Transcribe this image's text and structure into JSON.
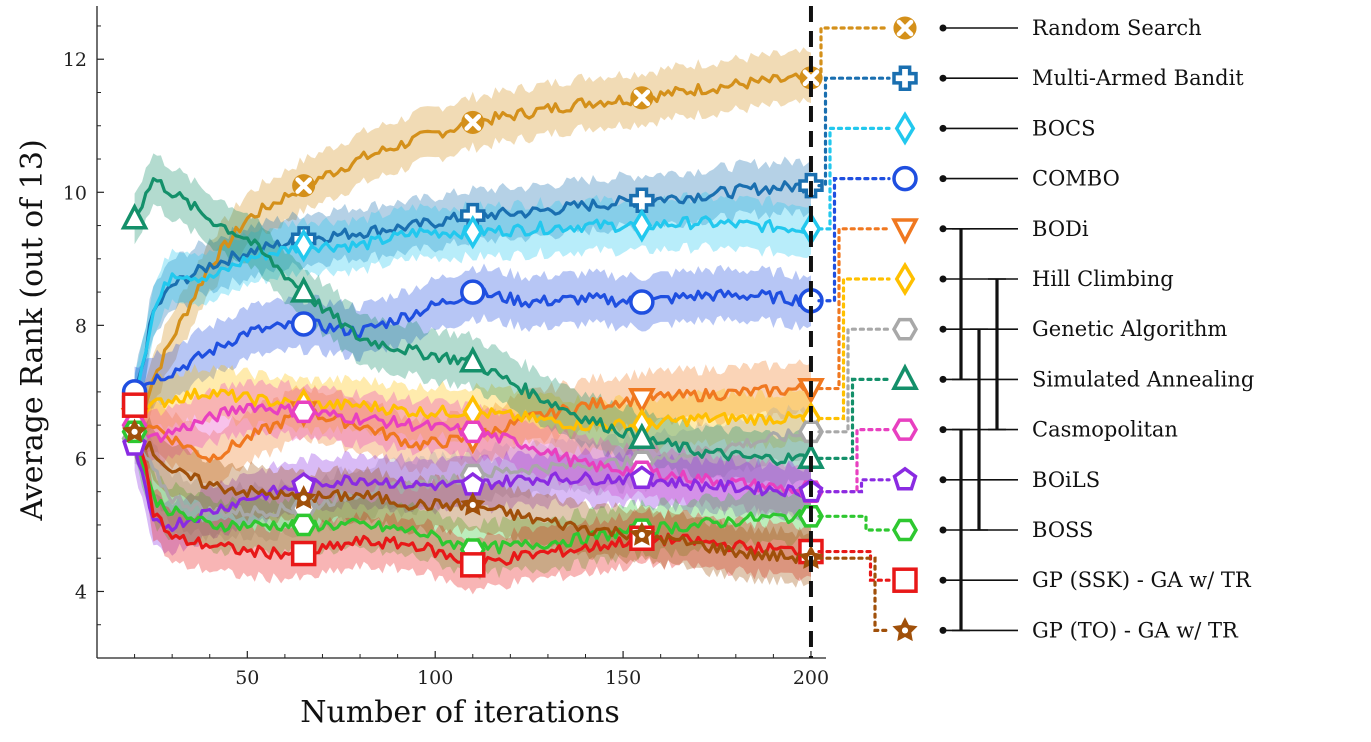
{
  "chart_data": {
    "type": "line",
    "title": "",
    "xlabel": "Number of iterations",
    "ylabel": "Average Rank (out of 13)",
    "xlim": [
      10,
      204
    ],
    "ylim": [
      3.0,
      12.8
    ],
    "xticks": [
      50,
      100,
      150,
      200
    ],
    "yticks": [
      4,
      6,
      8,
      10,
      12
    ],
    "vertical_line_x": 200,
    "series": [
      {
        "name": "Random Search",
        "color": "#d4901a",
        "marker": "x-circle",
        "x": [
          20,
          25,
          30,
          40,
          50,
          65,
          80,
          95,
          110,
          125,
          140,
          155,
          170,
          185,
          200
        ],
        "y": [
          6.4,
          7.2,
          7.8,
          8.9,
          9.6,
          10.1,
          10.5,
          10.8,
          11.05,
          11.2,
          11.35,
          11.42,
          11.55,
          11.65,
          11.72
        ]
      },
      {
        "name": "Multi-Armed Bandit",
        "color": "#1a6fb0",
        "marker": "plus",
        "x": [
          20,
          25,
          30,
          40,
          50,
          65,
          80,
          95,
          110,
          125,
          140,
          155,
          170,
          185,
          200
        ],
        "y": [
          6.85,
          8.2,
          8.6,
          8.9,
          9.1,
          9.3,
          9.4,
          9.5,
          9.65,
          9.7,
          9.8,
          9.88,
          9.95,
          10.05,
          10.1
        ]
      },
      {
        "name": "BOCS",
        "color": "#22c8ee",
        "marker": "diamond",
        "x": [
          20,
          25,
          30,
          40,
          50,
          65,
          80,
          95,
          110,
          125,
          140,
          155,
          170,
          185,
          200
        ],
        "y": [
          6.9,
          8.2,
          8.8,
          8.7,
          9.0,
          9.2,
          9.2,
          9.4,
          9.4,
          9.45,
          9.5,
          9.5,
          9.55,
          9.5,
          9.45
        ]
      },
      {
        "name": "COMBO",
        "color": "#1f4fe0",
        "marker": "circle",
        "x": [
          20,
          25,
          30,
          40,
          50,
          65,
          80,
          95,
          110,
          125,
          140,
          155,
          170,
          185,
          200
        ],
        "y": [
          7.0,
          7.2,
          7.3,
          7.6,
          7.9,
          8.02,
          7.9,
          8.2,
          8.5,
          8.35,
          8.4,
          8.35,
          8.45,
          8.45,
          8.37
        ]
      },
      {
        "name": "BODi",
        "color": "#f07820",
        "marker": "triangle-down",
        "x": [
          20,
          25,
          30,
          40,
          50,
          65,
          80,
          95,
          110,
          125,
          140,
          155,
          170,
          185,
          200
        ],
        "y": [
          6.6,
          6.5,
          6.3,
          6.0,
          6.3,
          6.7,
          6.5,
          6.2,
          6.3,
          6.6,
          6.8,
          6.9,
          6.95,
          7.0,
          7.05
        ]
      },
      {
        "name": "Hill Climbing",
        "color": "#ffc000",
        "marker": "diamond",
        "x": [
          20,
          25,
          30,
          40,
          50,
          65,
          80,
          95,
          110,
          125,
          140,
          155,
          170,
          185,
          200
        ],
        "y": [
          6.7,
          6.8,
          6.9,
          7.0,
          6.9,
          6.8,
          6.8,
          6.7,
          6.7,
          6.6,
          6.5,
          6.5,
          6.6,
          6.6,
          6.6
        ]
      },
      {
        "name": "Genetic Algorithm",
        "color": "#a8a8a8",
        "marker": "hexagon",
        "x": [
          20,
          25,
          30,
          40,
          50,
          65,
          80,
          95,
          110,
          125,
          140,
          155,
          170,
          185,
          200
        ],
        "y": [
          6.3,
          5.8,
          5.4,
          5.2,
          5.2,
          5.25,
          5.5,
          5.6,
          5.75,
          5.85,
          5.9,
          5.95,
          6.1,
          6.25,
          6.4
        ]
      },
      {
        "name": "Simulated Annealing",
        "color": "#14906a",
        "marker": "triangle",
        "x": [
          20,
          25,
          30,
          40,
          50,
          65,
          80,
          95,
          110,
          125,
          140,
          155,
          170,
          185,
          200
        ],
        "y": [
          9.6,
          10.2,
          10.0,
          9.6,
          9.3,
          8.5,
          7.8,
          7.6,
          7.45,
          7.0,
          6.6,
          6.3,
          6.1,
          6.0,
          6.0
        ]
      },
      {
        "name": "Casmopolitan",
        "color": "#e840c0",
        "marker": "hexagon",
        "x": [
          20,
          25,
          30,
          40,
          50,
          65,
          80,
          95,
          110,
          125,
          140,
          155,
          170,
          185,
          200
        ],
        "y": [
          6.5,
          6.3,
          6.4,
          6.6,
          6.8,
          6.7,
          6.6,
          6.5,
          6.4,
          6.2,
          5.9,
          5.8,
          5.7,
          5.6,
          5.5
        ]
      },
      {
        "name": "BOiLS",
        "color": "#8a2be2",
        "marker": "pentagon",
        "x": [
          20,
          25,
          30,
          40,
          50,
          65,
          80,
          95,
          110,
          125,
          140,
          155,
          170,
          185,
          200
        ],
        "y": [
          6.2,
          5.0,
          5.0,
          5.2,
          5.4,
          5.6,
          5.7,
          5.6,
          5.6,
          5.7,
          5.7,
          5.7,
          5.6,
          5.55,
          5.5
        ]
      },
      {
        "name": "BOSS",
        "color": "#2ec830",
        "marker": "hexagon",
        "x": [
          20,
          25,
          30,
          40,
          50,
          65,
          80,
          95,
          110,
          125,
          140,
          155,
          170,
          185,
          200
        ],
        "y": [
          6.4,
          5.4,
          5.2,
          5.0,
          5.0,
          5.0,
          5.0,
          4.9,
          4.63,
          4.7,
          4.8,
          4.93,
          5.0,
          5.1,
          5.13
        ]
      },
      {
        "name": "GP (SSK) - GA w/ TR",
        "color": "#e81818",
        "marker": "square",
        "x": [
          20,
          25,
          30,
          40,
          50,
          65,
          80,
          95,
          110,
          125,
          140,
          155,
          170,
          185,
          200
        ],
        "y": [
          6.8,
          5.2,
          4.8,
          4.7,
          4.6,
          4.57,
          4.75,
          4.7,
          4.4,
          4.55,
          4.65,
          4.8,
          4.75,
          4.65,
          4.6
        ]
      },
      {
        "name": "GP (TO) - GA w/ TR",
        "color": "#a0500a",
        "marker": "star",
        "x": [
          20,
          25,
          30,
          40,
          50,
          65,
          80,
          95,
          110,
          125,
          140,
          155,
          170,
          185,
          200
        ],
        "y": [
          6.4,
          6.1,
          5.8,
          5.6,
          5.5,
          5.4,
          5.45,
          5.3,
          5.3,
          5.1,
          4.95,
          4.85,
          4.7,
          4.55,
          4.5
        ]
      }
    ],
    "significance_groups": [
      {
        "from": "BODi",
        "to": "Simulated Annealing"
      },
      {
        "from": "Hill Climbing",
        "to": "Casmopolitan"
      },
      {
        "from": "Genetic Algorithm",
        "to": "BOSS"
      },
      {
        "from": "Casmopolitan",
        "to": "GP (TO) - GA w/ TR"
      }
    ]
  }
}
